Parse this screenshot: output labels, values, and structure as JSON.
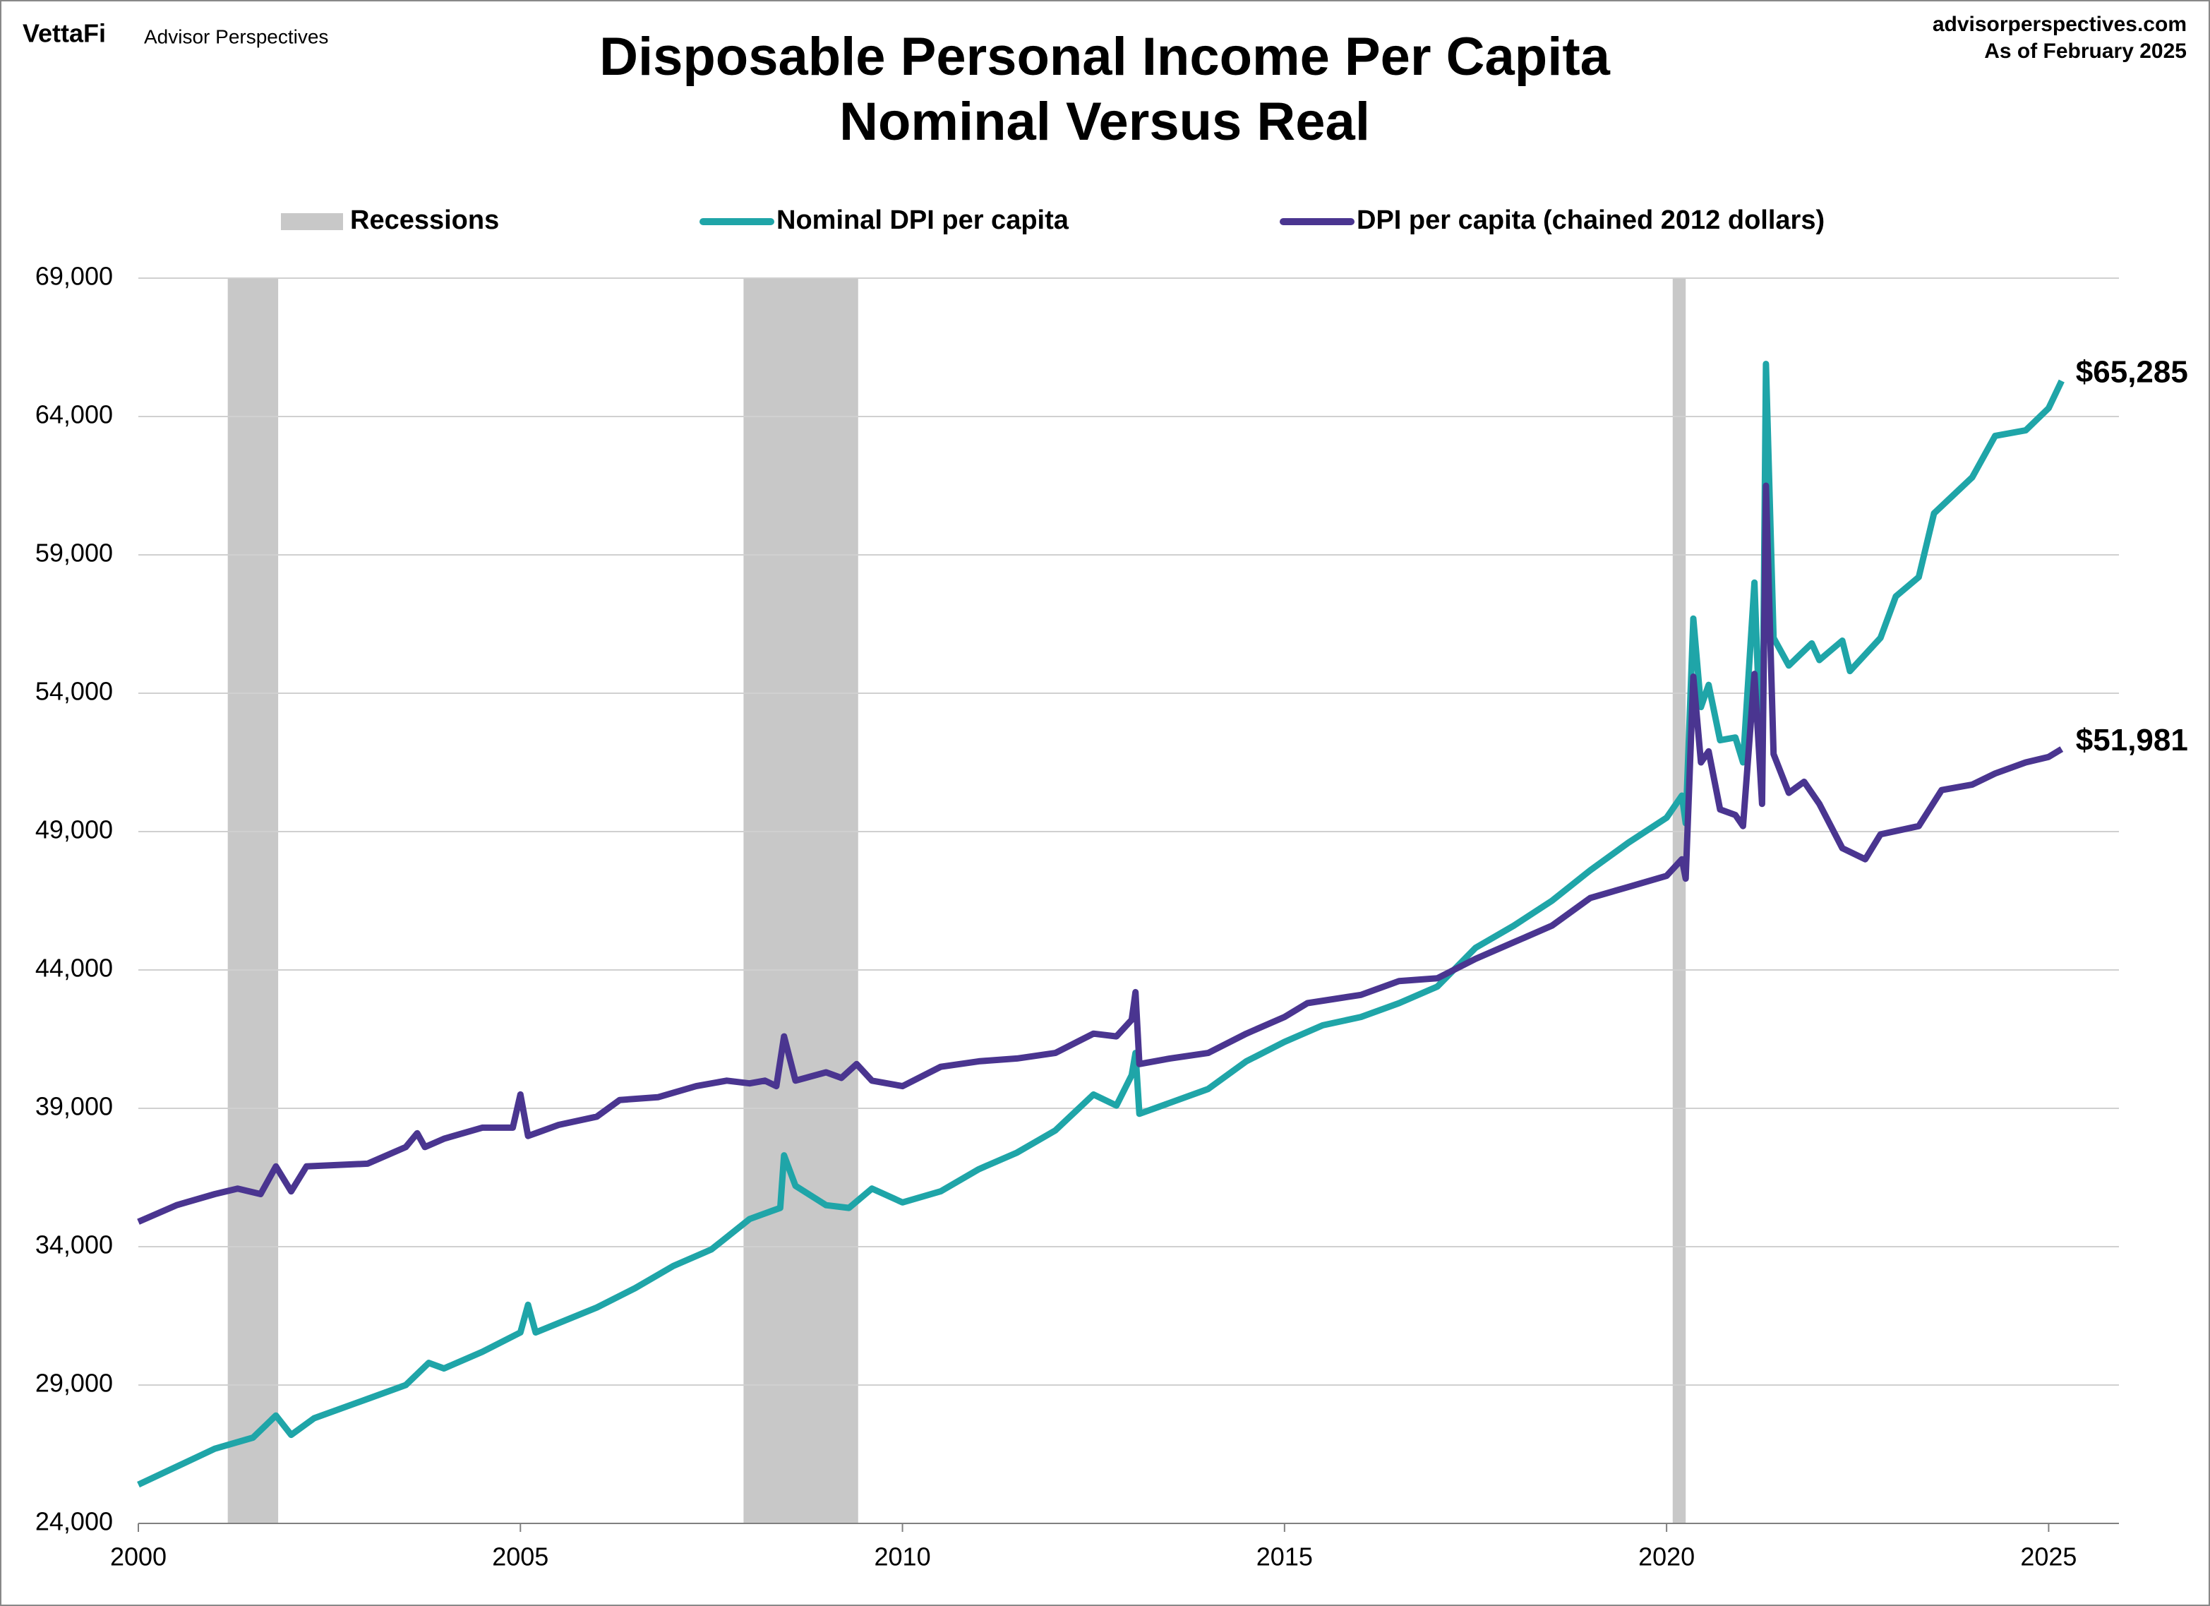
{
  "brand": {
    "logo": "VettaFi",
    "name": "Advisor Perspectives",
    "site": "advisorperspectives.com",
    "date": "As of February 2025"
  },
  "chart_data": {
    "type": "line",
    "title": "Disposable Personal Income Per Capita",
    "subtitle": "Nominal Versus Real",
    "recessions": {
      "name": "Recessions",
      "color": "#c8c8c8",
      "spans": [
        [
          2001.17,
          2001.83
        ],
        [
          2007.92,
          2009.42
        ],
        [
          2020.08,
          2020.25
        ]
      ]
    },
    "series": [
      {
        "name": "Nominal DPI per capita",
        "color": "#1fa5a8",
        "x": [
          2000,
          2001,
          2001.5,
          2001.8,
          2002,
          2002.3,
          2003,
          2003.5,
          2003.8,
          2004,
          2004.5,
          2005,
          2005.1,
          2005.2,
          2006,
          2006.5,
          2007,
          2007.5,
          2008,
          2008.3,
          2008.4,
          2008.45,
          2008.6,
          2009,
          2009.3,
          2009.6,
          2010,
          2010.5,
          2011,
          2011.5,
          2012,
          2012.5,
          2012.8,
          2013,
          2013.05,
          2013.1,
          2013.5,
          2014,
          2014.5,
          2015,
          2015.5,
          2016,
          2016.5,
          2017,
          2017.5,
          2018,
          2018.5,
          2019,
          2019.5,
          2020,
          2020.2,
          2020.25,
          2020.35,
          2020.45,
          2020.55,
          2020.7,
          2020.9,
          2021,
          2021.15,
          2021.25,
          2021.3,
          2021.4,
          2021.6,
          2021.9,
          2022,
          2022.3,
          2022.4,
          2022.8,
          2023,
          2023.3,
          2023.5,
          2024,
          2024.3,
          2024.7,
          2025,
          2025.17
        ],
        "values": [
          25400,
          26700,
          27100,
          27900,
          27200,
          27800,
          28500,
          29000,
          29800,
          29600,
          30200,
          30900,
          31900,
          30900,
          31800,
          32500,
          33300,
          33900,
          35000,
          35300,
          35400,
          37300,
          36200,
          35500,
          35400,
          36100,
          35600,
          36000,
          36800,
          37400,
          38200,
          39500,
          39100,
          40200,
          41000,
          38800,
          39200,
          39700,
          40700,
          41400,
          42000,
          42300,
          42800,
          43400,
          44800,
          45600,
          46500,
          47600,
          48600,
          49500,
          50300,
          49300,
          56700,
          53500,
          54300,
          52300,
          52400,
          51500,
          58000,
          50500,
          65900,
          56000,
          55000,
          55800,
          55200,
          55900,
          54800,
          56000,
          57500,
          58200,
          60500,
          61800,
          63300,
          63500,
          64300,
          65285
        ],
        "value_labels": [
          null,
          null,
          null,
          null,
          null,
          null,
          null,
          null,
          null,
          null,
          null,
          null,
          null,
          null,
          null,
          null,
          null,
          null,
          null,
          null,
          null,
          null,
          null,
          null,
          null,
          null,
          null,
          null,
          null,
          null,
          null,
          null,
          null,
          null,
          null,
          null,
          null,
          null,
          null,
          null,
          null,
          null,
          null,
          null,
          null,
          null,
          null,
          null,
          null,
          null,
          null,
          null,
          null,
          null,
          null,
          null,
          null,
          null,
          null,
          null,
          null,
          null,
          null,
          null,
          null,
          null,
          null,
          null,
          null,
          null,
          null,
          null,
          null,
          null,
          null,
          "$65,285"
        ]
      },
      {
        "name": "DPI per capita (chained 2012 dollars)",
        "color": "#4a3590",
        "x": [
          2000,
          2000.5,
          2001,
          2001.3,
          2001.6,
          2001.8,
          2002,
          2002.2,
          2003,
          2003.5,
          2003.65,
          2003.75,
          2004,
          2004.5,
          2004.9,
          2005,
          2005.1,
          2005.5,
          2006,
          2006.3,
          2006.8,
          2007.3,
          2007.7,
          2008,
          2008.2,
          2008.35,
          2008.45,
          2008.6,
          2009,
          2009.2,
          2009.4,
          2009.6,
          2010,
          2010.5,
          2011,
          2011.5,
          2012,
          2012.5,
          2012.8,
          2013,
          2013.05,
          2013.1,
          2013.5,
          2014,
          2014.5,
          2015,
          2015.3,
          2016,
          2016.5,
          2017,
          2017.5,
          2018,
          2018.5,
          2019,
          2019.5,
          2020,
          2020.2,
          2020.25,
          2020.35,
          2020.45,
          2020.55,
          2020.7,
          2020.9,
          2021,
          2021.15,
          2021.25,
          2021.3,
          2021.4,
          2021.6,
          2021.8,
          2022,
          2022.3,
          2022.6,
          2022.8,
          2023.3,
          2023.6,
          2024,
          2024.3,
          2024.7,
          2025,
          2025.17
        ],
        "values": [
          34900,
          35500,
          35900,
          36100,
          35900,
          36900,
          36000,
          36900,
          37000,
          37600,
          38100,
          37600,
          37900,
          38300,
          38300,
          39500,
          38000,
          38400,
          38700,
          39300,
          39400,
          39800,
          40000,
          39900,
          40000,
          39800,
          41600,
          40000,
          40300,
          40100,
          40600,
          40000,
          39800,
          40500,
          40700,
          40800,
          41000,
          41700,
          41600,
          42200,
          43200,
          40600,
          40800,
          41000,
          41700,
          42300,
          42800,
          43100,
          43600,
          43700,
          44400,
          45000,
          45600,
          46600,
          47000,
          47400,
          48000,
          47300,
          54600,
          51500,
          51900,
          49800,
          49600,
          49200,
          54700,
          50000,
          61500,
          51800,
          50400,
          50800,
          50000,
          48400,
          48000,
          48900,
          49200,
          50500,
          50700,
          51100,
          51500,
          51700,
          51981
        ],
        "value_labels": [
          null,
          null,
          null,
          null,
          null,
          null,
          null,
          null,
          null,
          null,
          null,
          null,
          null,
          null,
          null,
          null,
          null,
          null,
          null,
          null,
          null,
          null,
          null,
          null,
          null,
          null,
          null,
          null,
          null,
          null,
          null,
          null,
          null,
          null,
          null,
          null,
          null,
          null,
          null,
          null,
          null,
          null,
          null,
          null,
          null,
          null,
          null,
          null,
          null,
          null,
          null,
          null,
          null,
          null,
          null,
          null,
          null,
          null,
          null,
          null,
          null,
          null,
          null,
          null,
          null,
          null,
          null,
          null,
          null,
          null,
          null,
          null,
          null,
          null,
          null,
          null,
          null,
          null,
          null,
          null,
          "$51,981"
        ]
      }
    ],
    "xlim": [
      2000,
      2025.92
    ],
    "xticks": [
      2000,
      2005,
      2010,
      2015,
      2020,
      2025
    ],
    "ylim": [
      24000,
      69000
    ],
    "yticks": [
      {
        "value": 24000,
        "label": "24,000"
      },
      {
        "value": 29000,
        "label": "29,000"
      },
      {
        "value": 34000,
        "label": "34,000"
      },
      {
        "value": 39000,
        "label": "39,000"
      },
      {
        "value": 44000,
        "label": "44,000"
      },
      {
        "value": 49000,
        "label": "49,000"
      },
      {
        "value": 54000,
        "label": "54,000"
      },
      {
        "value": 59000,
        "label": "59,000"
      },
      {
        "value": 64000,
        "label": "64,000"
      },
      {
        "value": 69000,
        "label": "69,000"
      }
    ],
    "grid": true
  }
}
